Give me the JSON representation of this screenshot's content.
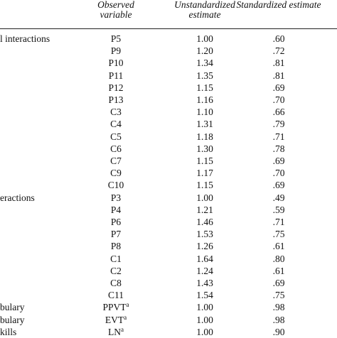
{
  "table": {
    "header": [
      "Observed variable",
      "Unstandardized estimate",
      "Standardized estimate"
    ],
    "rows": [
      {
        "group": "l interactions",
        "variable": "P5",
        "unstd": "1.00",
        "std": ".60"
      },
      {
        "variable": "P9",
        "unstd": "1.20",
        "std": ".72"
      },
      {
        "variable": "P10",
        "unstd": "1.34",
        "std": ".81"
      },
      {
        "variable": "P11",
        "unstd": "1.35",
        "std": ".81"
      },
      {
        "variable": "P12",
        "unstd": "1.15",
        "std": ".69"
      },
      {
        "variable": "P13",
        "unstd": "1.16",
        "std": ".70"
      },
      {
        "variable": "C3",
        "unstd": "1.10",
        "std": ".66"
      },
      {
        "variable": "C4",
        "unstd": "1.31",
        "std": ".79"
      },
      {
        "variable": "C5",
        "unstd": "1.18",
        "std": ".71"
      },
      {
        "variable": "C6",
        "unstd": "1.30",
        "std": ".78"
      },
      {
        "variable": "C7",
        "unstd": "1.15",
        "std": ".69"
      },
      {
        "variable": "C9",
        "unstd": "1.17",
        "std": ".70"
      },
      {
        "variable": "C10",
        "unstd": "1.15",
        "std": ".69"
      },
      {
        "group": "eractions",
        "variable": "P3",
        "unstd": "1.00",
        "std": ".49"
      },
      {
        "variable": "P4",
        "unstd": "1.21",
        "std": ".59"
      },
      {
        "variable": "P6",
        "unstd": "1.46",
        "std": ".71"
      },
      {
        "variable": "P7",
        "unstd": "1.53",
        "std": ".75"
      },
      {
        "variable": "P8",
        "unstd": "1.26",
        "std": ".61"
      },
      {
        "variable": "C1",
        "unstd": "1.64",
        "std": ".80"
      },
      {
        "variable": "C2",
        "unstd": "1.24",
        "std": ".61"
      },
      {
        "variable": "C8",
        "unstd": "1.43",
        "std": ".69"
      },
      {
        "variable": "C11",
        "unstd": "1.54",
        "std": ".75"
      },
      {
        "group": "bulary",
        "variable": "PPVT",
        "note": "a",
        "unstd": "1.00",
        "std": ".98"
      },
      {
        "group": "bulary",
        "variable": "EVT",
        "note": "a",
        "unstd": "1.00",
        "std": ".98"
      },
      {
        "group": "kills",
        "variable": "LN",
        "note": "a",
        "unstd": "1.00",
        "std": ".90"
      }
    ]
  }
}
